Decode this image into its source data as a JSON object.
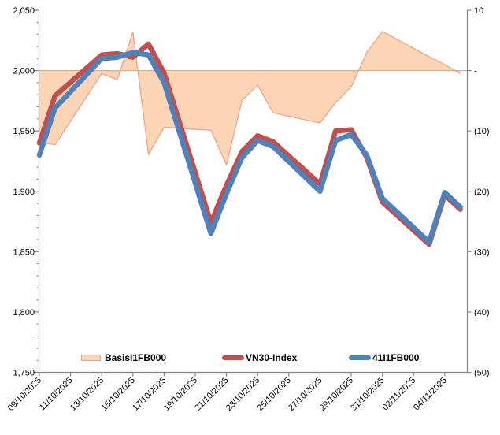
{
  "chart_data": {
    "type": "combo",
    "subtype": "area+line",
    "title": "",
    "dates": [
      "09/10/2025",
      "10/10/2025",
      "13/10/2025",
      "14/10/2025",
      "15/10/2025",
      "16/10/2025",
      "17/10/2025",
      "20/10/2025",
      "21/10/2025",
      "22/10/2025",
      "23/10/2025",
      "24/10/2025",
      "27/10/2025",
      "28/10/2025",
      "29/10/2025",
      "30/10/2025",
      "31/10/2025",
      "03/11/2025",
      "04/11/2025",
      "05/11/2025"
    ],
    "day_offsets": [
      0,
      1,
      4,
      5,
      6,
      7,
      8,
      11,
      12,
      13,
      14,
      15,
      18,
      19,
      20,
      21,
      22,
      25,
      26,
      27
    ],
    "series": [
      {
        "name": "BasisI1FB000",
        "type": "area",
        "axis": "right",
        "fill": "#FBD5B5",
        "border": "#F0A387",
        "values": [
          -11.8,
          -12.3,
          -0.5,
          -1.5,
          6.4,
          -13.9,
          -9.4,
          -9.9,
          -15.6,
          -4.9,
          -2.4,
          -7.0,
          -8.7,
          -5.3,
          -2.7,
          3.0,
          6.5,
          2.3,
          1.0,
          -0.5
        ]
      },
      {
        "name": "VN30-Index",
        "type": "line",
        "axis": "left",
        "color": "#C0504D",
        "values": [
          1940,
          1979,
          2013,
          2014,
          2011,
          2022,
          1998,
          1874,
          1905,
          1933,
          1946,
          1941,
          1906,
          1950,
          1951,
          1928,
          1891,
          1856,
          1897,
          1885
        ]
      },
      {
        "name": "41I1FB000",
        "type": "line",
        "axis": "left",
        "color": "#4F81BD",
        "values": [
          1930,
          1969,
          2010,
          2011,
          2015,
          2013,
          1990,
          1865,
          1898,
          1928,
          1942,
          1937,
          1900,
          1942,
          1947,
          1930,
          1894,
          1858,
          1899,
          1887
        ]
      }
    ],
    "left_axis": {
      "tick_labels": [
        "2,050",
        "2,000",
        "1,950",
        "1,900",
        "1,850",
        "1,800",
        "1,750"
      ],
      "tick_values": [
        2050,
        2000,
        1950,
        1900,
        1850,
        1800,
        1750
      ],
      "min": 1750,
      "max": 2050,
      "minor_step": 10
    },
    "right_axis": {
      "tick_labels": [
        "10",
        "-",
        "(10)",
        "(20)",
        "(30)",
        "(40)",
        "(50)"
      ],
      "tick_values": [
        10,
        0,
        -10,
        -20,
        -30,
        -40,
        -50
      ],
      "min": -50,
      "max": 10
    },
    "x_axis": {
      "tick_labels": [
        "09/10/2025",
        "11/10/2025",
        "13/10/2025",
        "15/10/2025",
        "17/10/2025",
        "19/10/2025",
        "21/10/2025",
        "23/10/2025",
        "25/10/2025",
        "27/10/2025",
        "29/10/2025",
        "31/10/2025",
        "02/11/2025",
        "04/11/2025"
      ],
      "tick_day_offsets": [
        0,
        2,
        4,
        6,
        8,
        10,
        12,
        14,
        16,
        18,
        20,
        22,
        24,
        26
      ],
      "label_rotation_deg": 45
    },
    "grid": "off",
    "legend_position": "bottom-inside"
  },
  "legend": {
    "items": [
      {
        "label": "BasisI1FB000",
        "swatch": "area"
      },
      {
        "label": "VN30-Index",
        "swatch": "line"
      },
      {
        "label": "41I1FB000",
        "swatch": "line"
      }
    ]
  },
  "colors": {
    "vn30_line": "#C0504D",
    "futures_line": "#4F81BD",
    "basis_fill": "#FBD5B5",
    "basis_border": "#F0A387",
    "axis_line": "#848484",
    "background": "#FFFFFF"
  }
}
